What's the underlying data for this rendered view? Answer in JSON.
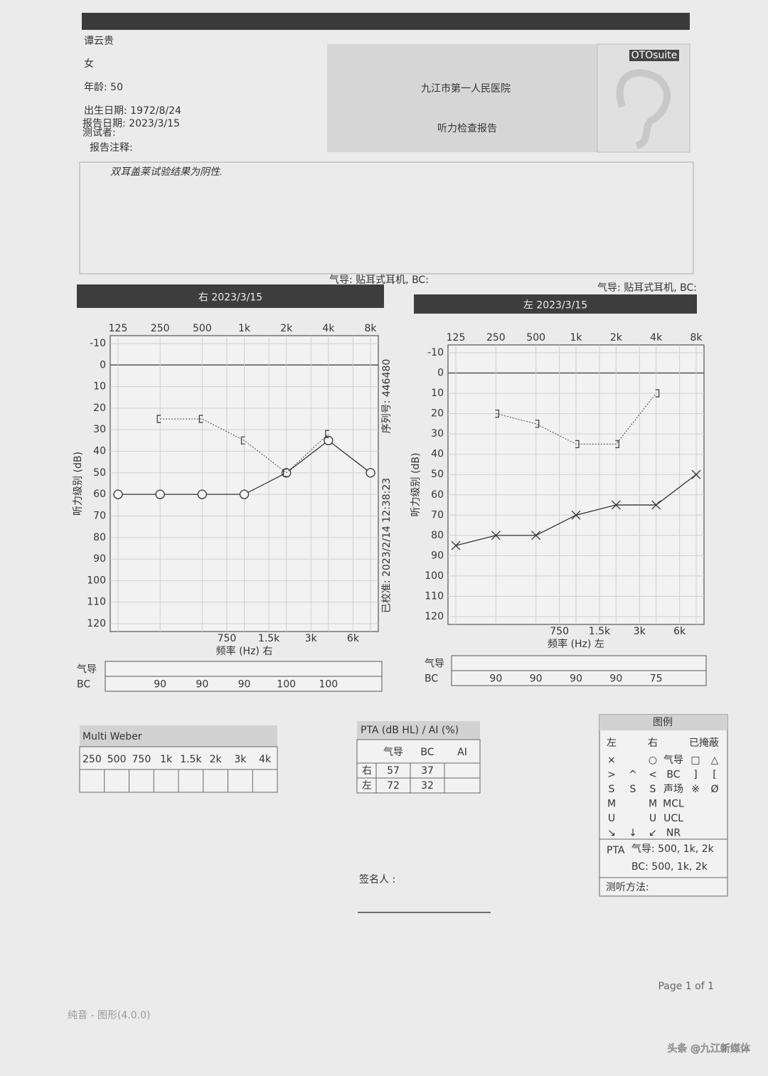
{
  "header": {
    "patient_name": "谭云贵",
    "sex": "女",
    "age": "年龄: 50",
    "birth_date": "出生日期: 1972/8/24",
    "report_date": "报告日期: 2023/3/15",
    "tester": "测试者:",
    "logo": "OTOsuite",
    "hospital": "九江市第一人民医院",
    "report_title": "听力检查报告"
  },
  "notes": {
    "label": "报告注释:",
    "text": "双耳盖莱试验结果为阴性."
  },
  "transducer_right": "气导: 贴耳式耳机, BC:",
  "transducer_left": "气导: 贴耳式耳机, BC:",
  "chart_data": [
    {
      "type": "line",
      "title": "右 2023/3/15",
      "x_label": "频率 (Hz) 右",
      "y_label": "听力级别 (dB)",
      "side_labels": [
        "序列号: 446480",
        "已校准: 2023/2/14 12:38:23"
      ],
      "x": [
        125,
        250,
        500,
        1000,
        2000,
        4000,
        8000
      ],
      "xlim": [
        125,
        8000
      ],
      "log_x": true,
      "xticks": [
        125,
        250,
        500,
        {
          "value": 1000,
          "label": "1k"
        },
        {
          "value": 2000,
          "label": "2k"
        },
        {
          "value": 4000,
          "label": "4k"
        },
        {
          "value": 8000,
          "label": "8k"
        }
      ],
      "xticks_minor": [
        750,
        {
          "value": 1500,
          "label": "1.5k"
        },
        {
          "value": 3000,
          "label": "3k"
        },
        {
          "value": 6000,
          "label": "6k"
        }
      ],
      "ylim": [
        -10,
        120
      ],
      "y_inverted": true,
      "yticks": [
        -10,
        0,
        10,
        20,
        30,
        40,
        50,
        60,
        70,
        80,
        90,
        100,
        110,
        120
      ],
      "grid": true,
      "series": [
        {
          "color": "#333333",
          "marker": "circle",
          "values": [
            60,
            60,
            60,
            60,
            50,
            35,
            50
          ]
        },
        {
          "color": "#444444",
          "marker": "bracket-left",
          "dashed": true,
          "values": [
            null,
            25,
            25,
            35,
            50,
            32,
            null
          ]
        }
      ]
    },
    {
      "type": "line",
      "title": "左 2023/3/15",
      "x_label": "频率 (Hz) 左",
      "y_label": "听力级别 (dB)",
      "x": [
        125,
        250,
        500,
        1000,
        2000,
        4000,
        8000
      ],
      "xlim": [
        125,
        8000
      ],
      "log_x": true,
      "xticks": [
        125,
        250,
        500,
        {
          "value": 1000,
          "label": "1k"
        },
        {
          "value": 2000,
          "label": "2k"
        },
        {
          "value": 4000,
          "label": "4k"
        },
        {
          "value": 8000,
          "label": "8k"
        }
      ],
      "xticks_minor": [
        750,
        {
          "value": 1500,
          "label": "1.5k"
        },
        {
          "value": 3000,
          "label": "3k"
        },
        {
          "value": 6000,
          "label": "6k"
        }
      ],
      "ylim": [
        -10,
        120
      ],
      "y_inverted": true,
      "yticks": [
        -10,
        0,
        10,
        20,
        30,
        40,
        50,
        60,
        70,
        80,
        90,
        100,
        110,
        120
      ],
      "grid": true,
      "series": [
        {
          "color": "#333333",
          "marker": "cross",
          "values": [
            85,
            80,
            80,
            70,
            65,
            65,
            50
          ]
        },
        {
          "color": "#444444",
          "marker": "bracket-right",
          "dashed": true,
          "values": [
            null,
            20,
            25,
            35,
            35,
            10,
            null
          ]
        }
      ]
    }
  ],
  "threshold_tables": [
    {
      "row_labels": [
        "气导",
        "BC"
      ],
      "bc_values": [
        "90",
        "90",
        "90",
        "100",
        "100"
      ]
    },
    {
      "row_labels": [
        "气导",
        "BC"
      ],
      "bc_values": [
        "90",
        "90",
        "90",
        "90",
        "75"
      ]
    }
  ],
  "multi_weber": {
    "title": "Multi Weber",
    "frequencies": [
      "250",
      "500",
      "750",
      "1k",
      "1.5k",
      "2k",
      "3k",
      "4k"
    ]
  },
  "pta": {
    "title": "PTA (dB HL) / AI (%)",
    "headers": [
      "气导",
      "BC",
      "AI"
    ],
    "rows": [
      [
        "右",
        "57",
        "37"
      ],
      [
        "左",
        "72",
        "32"
      ]
    ]
  },
  "legend": {
    "title": "图例",
    "headers": [
      "左",
      "右",
      "已掩蔽"
    ],
    "rows": [
      [
        "×",
        null,
        "○",
        "气导",
        "□",
        "△"
      ],
      [
        ">",
        "^",
        "<",
        "BC",
        "]",
        "["
      ],
      [
        "S",
        "S",
        "S",
        "声场",
        "※",
        "Ø"
      ],
      [
        "M",
        null,
        "M",
        "MCL",
        null,
        null
      ],
      [
        "U",
        null,
        "U",
        "UCL",
        null,
        null
      ],
      [
        "↘",
        "↓",
        "↙",
        "NR",
        null,
        null
      ]
    ],
    "pta_label": "PTA",
    "pta_air": "气导: 500, 1k, 2k",
    "pta_bc": "BC: 500, 1k, 2k",
    "method": "测听方法:"
  },
  "signature": "签名人 :",
  "page": "Page 1 of 1",
  "footer": "纯音 - 图形(4.0.0)",
  "watermark": "头条 @九江新媒体"
}
